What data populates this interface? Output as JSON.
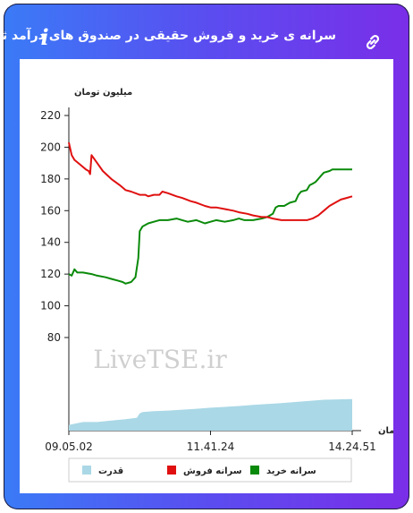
{
  "header": {
    "title": "سرانه ی خرید و فروش حقیقی در صندوق های درآمد ثابت",
    "info_icon": "info-icon",
    "link_icon": "link-icon"
  },
  "watermark": "LiveTSE.ir",
  "colors": {
    "buy": "#0a8a0a",
    "sell": "#e01010",
    "power": "#aad8e6"
  },
  "chart_data": {
    "type": "line",
    "ylabel": "میلیون تومان",
    "xlabel": "زمان",
    "ylim": [
      80,
      220
    ],
    "yticks": [
      80,
      100,
      120,
      140,
      160,
      180,
      200,
      220
    ],
    "x_tick_labels": [
      "09.05.02",
      "11.41.24",
      "14.24.51"
    ],
    "x_tick_positions": [
      0,
      0.5,
      1
    ],
    "legend": [
      "قدرت",
      "سرانه فروش",
      "سرانه خرید"
    ],
    "series": [
      {
        "name": "سرانه خرید",
        "x": [
          0,
          0.01,
          0.02,
          0.03,
          0.05,
          0.08,
          0.1,
          0.13,
          0.15,
          0.17,
          0.19,
          0.2,
          0.22,
          0.235,
          0.245,
          0.25,
          0.26,
          0.28,
          0.3,
          0.32,
          0.35,
          0.38,
          0.4,
          0.42,
          0.45,
          0.48,
          0.5,
          0.52,
          0.55,
          0.58,
          0.6,
          0.62,
          0.65,
          0.68,
          0.7,
          0.72,
          0.73,
          0.74,
          0.76,
          0.78,
          0.8,
          0.81,
          0.82,
          0.84,
          0.85,
          0.86,
          0.87,
          0.88,
          0.89,
          0.9,
          0.92,
          0.93,
          0.95,
          0.97,
          1.0
        ],
        "y": [
          120,
          119,
          123,
          121,
          121,
          120,
          119,
          118,
          117,
          116,
          115,
          114,
          115,
          118,
          130,
          147,
          150,
          152,
          153,
          154,
          154,
          155,
          154,
          153,
          154,
          152,
          153,
          154,
          153,
          154,
          155,
          154,
          154,
          155,
          156,
          158,
          162,
          163,
          163,
          165,
          166,
          170,
          172,
          173,
          176,
          177,
          178,
          180,
          182,
          184,
          185,
          186,
          186,
          186,
          186
        ]
      },
      {
        "name": "سرانه فروش",
        "x": [
          0,
          0.01,
          0.02,
          0.04,
          0.06,
          0.07,
          0.075,
          0.08,
          0.1,
          0.12,
          0.15,
          0.18,
          0.2,
          0.22,
          0.25,
          0.27,
          0.28,
          0.3,
          0.32,
          0.33,
          0.35,
          0.38,
          0.4,
          0.43,
          0.45,
          0.48,
          0.5,
          0.52,
          0.55,
          0.58,
          0.6,
          0.63,
          0.65,
          0.68,
          0.7,
          0.72,
          0.75,
          0.78,
          0.8,
          0.82,
          0.84,
          0.86,
          0.88,
          0.9,
          0.92,
          0.94,
          0.96,
          0.98,
          1.0
        ],
        "y": [
          203,
          195,
          192,
          189,
          186,
          185,
          183,
          195,
          190,
          185,
          180,
          176,
          173,
          172,
          170,
          170,
          169,
          170,
          170,
          172,
          171,
          169,
          168,
          166,
          165,
          163,
          162,
          162,
          161,
          160,
          159,
          158,
          157,
          156,
          156,
          155,
          154,
          154,
          154,
          154,
          154,
          155,
          157,
          160,
          163,
          165,
          167,
          168,
          169
        ]
      },
      {
        "name": "قدرت",
        "x": [
          0,
          0.05,
          0.1,
          0.15,
          0.2,
          0.24,
          0.25,
          0.26,
          0.3,
          0.35,
          0.4,
          0.45,
          0.5,
          0.55,
          0.6,
          0.65,
          0.7,
          0.75,
          0.8,
          0.85,
          0.9,
          0.95,
          1.0
        ],
        "y": [
          80,
          81,
          81,
          81.5,
          82,
          82.5,
          84,
          84.5,
          84.8,
          85,
          85.3,
          85.6,
          86,
          86.3,
          86.6,
          87,
          87.3,
          87.6,
          88,
          88.4,
          88.8,
          88.9,
          89
        ]
      }
    ]
  }
}
